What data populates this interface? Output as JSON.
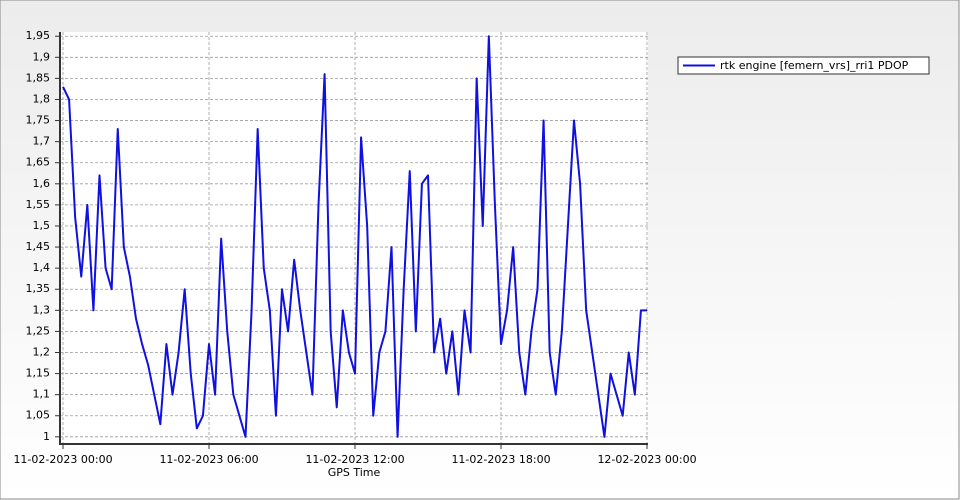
{
  "chart_data": {
    "type": "line",
    "x_label": "GPS Time",
    "x": [
      "11-02-2023 00:00",
      "11-02-2023 00:15",
      "11-02-2023 00:30",
      "11-02-2023 00:45",
      "11-02-2023 01:00",
      "11-02-2023 01:15",
      "11-02-2023 01:30",
      "11-02-2023 01:45",
      "11-02-2023 02:00",
      "11-02-2023 02:15",
      "11-02-2023 02:30",
      "11-02-2023 02:45",
      "11-02-2023 03:00",
      "11-02-2023 03:15",
      "11-02-2023 03:30",
      "11-02-2023 03:45",
      "11-02-2023 04:00",
      "11-02-2023 04:15",
      "11-02-2023 04:30",
      "11-02-2023 04:45",
      "11-02-2023 05:00",
      "11-02-2023 05:15",
      "11-02-2023 05:30",
      "11-02-2023 05:45",
      "11-02-2023 06:00",
      "11-02-2023 06:15",
      "11-02-2023 06:30",
      "11-02-2023 06:45",
      "11-02-2023 07:00",
      "11-02-2023 07:15",
      "11-02-2023 07:30",
      "11-02-2023 07:45",
      "11-02-2023 08:00",
      "11-02-2023 08:15",
      "11-02-2023 08:30",
      "11-02-2023 08:45",
      "11-02-2023 09:00",
      "11-02-2023 09:15",
      "11-02-2023 09:30",
      "11-02-2023 09:45",
      "11-02-2023 10:00",
      "11-02-2023 10:15",
      "11-02-2023 10:30",
      "11-02-2023 10:45",
      "11-02-2023 11:00",
      "11-02-2023 11:15",
      "11-02-2023 11:30",
      "11-02-2023 11:45",
      "11-02-2023 12:00",
      "11-02-2023 12:15",
      "11-02-2023 12:30",
      "11-02-2023 12:45",
      "11-02-2023 13:00",
      "11-02-2023 13:15",
      "11-02-2023 13:30",
      "11-02-2023 13:45",
      "11-02-2023 14:00",
      "11-02-2023 14:15",
      "11-02-2023 14:30",
      "11-02-2023 14:45",
      "11-02-2023 15:00",
      "11-02-2023 15:15",
      "11-02-2023 15:30",
      "11-02-2023 15:45",
      "11-02-2023 16:00",
      "11-02-2023 16:15",
      "11-02-2023 16:30",
      "11-02-2023 16:45",
      "11-02-2023 17:00",
      "11-02-2023 17:15",
      "11-02-2023 17:30",
      "11-02-2023 17:45",
      "11-02-2023 18:00",
      "11-02-2023 18:15",
      "11-02-2023 18:30",
      "11-02-2023 18:45",
      "11-02-2023 19:00",
      "11-02-2023 19:15",
      "11-02-2023 19:30",
      "11-02-2023 19:45",
      "11-02-2023 20:00",
      "11-02-2023 20:15",
      "11-02-2023 20:30",
      "11-02-2023 20:45",
      "11-02-2023 21:00",
      "11-02-2023 21:15",
      "11-02-2023 21:30",
      "11-02-2023 21:45",
      "11-02-2023 22:00",
      "11-02-2023 22:15",
      "11-02-2023 22:30",
      "11-02-2023 22:45",
      "11-02-2023 23:00",
      "11-02-2023 23:15",
      "11-02-2023 23:30",
      "11-02-2023 23:45",
      "12-02-2023 00:00"
    ],
    "series": [
      {
        "name": "rtk engine [femern_vrs]_rri1 PDOP",
        "color": "#1010e0",
        "values": [
          1.83,
          1.8,
          1.52,
          1.38,
          1.55,
          1.3,
          1.62,
          1.4,
          1.35,
          1.73,
          1.45,
          1.38,
          1.28,
          1.22,
          1.17,
          1.1,
          1.03,
          1.22,
          1.1,
          1.2,
          1.35,
          1.15,
          1.02,
          1.05,
          1.22,
          1.1,
          1.47,
          1.25,
          1.1,
          1.05,
          1.0,
          1.3,
          1.73,
          1.4,
          1.3,
          1.05,
          1.35,
          1.25,
          1.42,
          1.3,
          1.2,
          1.1,
          1.55,
          1.86,
          1.25,
          1.07,
          1.3,
          1.2,
          1.15,
          1.71,
          1.5,
          1.05,
          1.2,
          1.25,
          1.45,
          1.0,
          1.35,
          1.63,
          1.25,
          1.6,
          1.62,
          1.2,
          1.28,
          1.15,
          1.25,
          1.1,
          1.3,
          1.2,
          1.85,
          1.5,
          1.95,
          1.55,
          1.22,
          1.3,
          1.45,
          1.2,
          1.1,
          1.25,
          1.35,
          1.75,
          1.2,
          1.1,
          1.25,
          1.5,
          1.75,
          1.6,
          1.3,
          1.2,
          1.1,
          1.0,
          1.15,
          1.1,
          1.05,
          1.2,
          1.1,
          1.3,
          1.3
        ]
      }
    ],
    "xlim": [
      "11-02-2023 00:00",
      "12-02-2023 00:00"
    ],
    "xticks": [
      "11-02-2023 00:00",
      "11-02-2023 06:00",
      "11-02-2023 12:00",
      "11-02-2023 18:00",
      "12-02-2023 00:00"
    ],
    "ylim": [
      0.983,
      1.96
    ],
    "yticks": [
      1,
      {
        "value": 1.05,
        "label": "1,05"
      },
      {
        "value": 1.1,
        "label": "1,1"
      },
      {
        "value": 1.15,
        "label": "1,15"
      },
      {
        "value": 1.2,
        "label": "1,2"
      },
      {
        "value": 1.25,
        "label": "1,25"
      },
      {
        "value": 1.3,
        "label": "1,3"
      },
      {
        "value": 1.35,
        "label": "1,35"
      },
      {
        "value": 1.4,
        "label": "1,4"
      },
      {
        "value": 1.45,
        "label": "1,45"
      },
      {
        "value": 1.5,
        "label": "1,5"
      },
      {
        "value": 1.55,
        "label": "1,55"
      },
      {
        "value": 1.6,
        "label": "1,6"
      },
      {
        "value": 1.65,
        "label": "1,65"
      },
      {
        "value": 1.7,
        "label": "1,7"
      },
      {
        "value": 1.75,
        "label": "1,75"
      },
      {
        "value": 1.8,
        "label": "1,8"
      },
      {
        "value": 1.85,
        "label": "1,85"
      },
      {
        "value": 1.9,
        "label": "1,9"
      },
      {
        "value": 1.95,
        "label": "1,95"
      }
    ],
    "grid": true,
    "legend": "top-right"
  }
}
